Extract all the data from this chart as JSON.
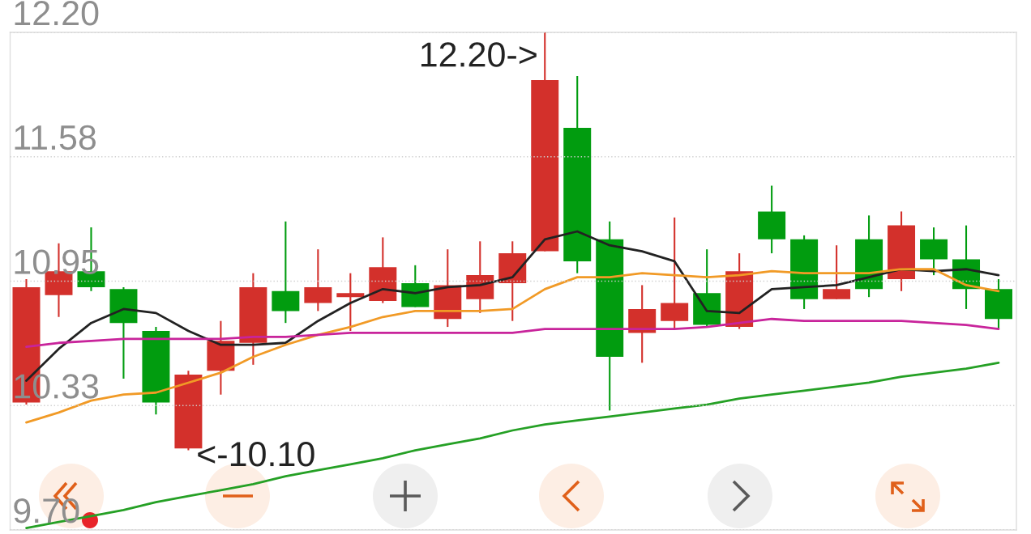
{
  "chart_data": {
    "type": "candlestick",
    "categories": [
      null,
      null,
      null,
      null,
      null,
      null,
      null,
      null,
      null,
      null,
      null,
      null,
      null,
      null,
      null,
      null,
      null,
      null,
      null,
      null,
      null,
      null,
      null,
      null,
      null,
      null,
      null,
      null,
      null,
      null,
      null
    ],
    "ohlc": [
      [
        10.34,
        10.96,
        10.33,
        10.92
      ],
      [
        10.88,
        11.14,
        10.77,
        11.0
      ],
      [
        11.0,
        11.22,
        10.9,
        10.92
      ],
      [
        10.91,
        10.92,
        10.46,
        10.74
      ],
      [
        10.7,
        10.72,
        10.28,
        10.34
      ],
      [
        10.11,
        10.5,
        10.1,
        10.48
      ],
      [
        10.5,
        10.75,
        10.38,
        10.65
      ],
      [
        10.64,
        10.99,
        10.53,
        10.92
      ],
      [
        10.9,
        11.25,
        10.74,
        10.8
      ],
      [
        10.84,
        11.11,
        10.8,
        10.92
      ],
      [
        10.87,
        10.99,
        10.7,
        10.89
      ],
      [
        10.85,
        11.17,
        10.84,
        11.02
      ],
      [
        10.94,
        11.03,
        10.82,
        10.82
      ],
      [
        10.76,
        11.11,
        10.72,
        10.93
      ],
      [
        10.86,
        11.15,
        10.79,
        10.98
      ],
      [
        10.94,
        11.15,
        10.75,
        11.09
      ],
      [
        11.1,
        12.2,
        11.1,
        11.96
      ],
      [
        11.72,
        11.98,
        10.99,
        11.05
      ],
      [
        11.16,
        11.25,
        10.3,
        10.57
      ],
      [
        10.69,
        10.93,
        10.54,
        10.81
      ],
      [
        10.75,
        11.27,
        10.71,
        10.84
      ],
      [
        10.89,
        11.11,
        10.72,
        10.73
      ],
      [
        10.72,
        11.09,
        10.71,
        11.0
      ],
      [
        11.3,
        11.43,
        11.09,
        11.16
      ],
      [
        11.16,
        11.18,
        10.81,
        10.86
      ],
      [
        10.86,
        11.13,
        10.86,
        10.91
      ],
      [
        11.16,
        11.28,
        10.87,
        10.91
      ],
      [
        10.96,
        11.3,
        10.9,
        11.23
      ],
      [
        11.16,
        11.22,
        10.98,
        11.06
      ],
      [
        11.06,
        11.23,
        10.81,
        10.91
      ],
      [
        10.91,
        10.96,
        10.71,
        10.76
      ]
    ],
    "colors": [
      "#d3302b",
      "#d3302b",
      "#019c0f",
      "#019c0f",
      "#019c0f",
      "#d3302b",
      "#d3302b",
      "#d3302b",
      "#019c0f",
      "#d3302b",
      "#d3302b",
      "#d3302b",
      "#019c0f",
      "#d3302b",
      "#d3302b",
      "#d3302b",
      "#d3302b",
      "#019c0f",
      "#019c0f",
      "#d3302b",
      "#d3302b",
      "#019c0f",
      "#d3302b",
      "#019c0f",
      "#019c0f",
      "#d3302b",
      "#019c0f",
      "#d3302b",
      "#019c0f",
      "#019c0f",
      "#019c0f"
    ],
    "series": [
      {
        "type": "line",
        "color": "#222222",
        "values": [
          10.45,
          10.61,
          10.74,
          10.81,
          10.79,
          10.7,
          10.63,
          10.63,
          10.64,
          10.75,
          10.84,
          10.91,
          10.89,
          10.92,
          10.93,
          10.97,
          11.16,
          11.2,
          11.13,
          11.1,
          11.05,
          10.8,
          10.79,
          10.91,
          10.92,
          10.93,
          10.97,
          11.01,
          11.0,
          11.01,
          10.98
        ]
      },
      {
        "type": "line",
        "color": "#f19a26",
        "values": [
          10.24,
          10.29,
          10.35,
          10.38,
          10.39,
          10.44,
          10.49,
          10.57,
          10.63,
          10.68,
          10.72,
          10.77,
          10.8,
          10.8,
          10.8,
          10.81,
          10.91,
          10.97,
          10.97,
          10.99,
          10.98,
          10.97,
          10.98,
          11.0,
          10.99,
          10.99,
          10.99,
          11.01,
          11.01,
          10.93,
          10.9
        ]
      },
      {
        "type": "line",
        "color": "#c8249b",
        "values": [
          10.62,
          10.64,
          10.65,
          10.66,
          10.66,
          10.66,
          10.66,
          10.67,
          10.67,
          10.68,
          10.69,
          10.69,
          10.69,
          10.69,
          10.69,
          10.69,
          10.71,
          10.71,
          10.71,
          10.71,
          10.71,
          10.72,
          10.74,
          10.76,
          10.75,
          10.75,
          10.75,
          10.75,
          10.74,
          10.73,
          10.71
        ]
      },
      {
        "type": "line",
        "color": "#25a025",
        "values": [
          9.71,
          9.74,
          9.77,
          9.8,
          9.84,
          9.87,
          9.9,
          9.93,
          9.97,
          10.0,
          10.03,
          10.06,
          10.1,
          10.13,
          10.16,
          10.2,
          10.23,
          10.25,
          10.27,
          10.29,
          10.31,
          10.33,
          10.36,
          10.38,
          10.4,
          10.42,
          10.44,
          10.47,
          10.49,
          10.51,
          10.54
        ]
      }
    ],
    "ylim": [
      9.7,
      12.2
    ],
    "yticks": [
      {
        "value": 9.7,
        "label": "9.70"
      },
      {
        "value": 10.325,
        "label": "10.33"
      },
      {
        "value": 10.95,
        "label": "10.95"
      },
      {
        "value": 11.575,
        "label": "11.58"
      },
      {
        "value": 12.2,
        "label": "12.20"
      }
    ],
    "grid": "y",
    "tick_labels": "y",
    "annotations": [
      "12.20->",
      "<-10.10"
    ]
  }
}
